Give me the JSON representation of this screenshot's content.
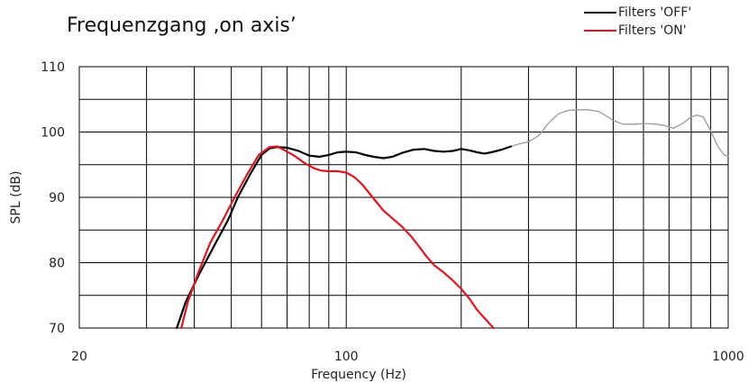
{
  "chart_data": {
    "type": "line",
    "title": "Frequenzgang ‚on axis’",
    "xlabel": "Frequency (Hz)",
    "ylabel": "SPL (dB)",
    "x_scale": "log",
    "xlim": [
      20,
      1000
    ],
    "ylim": [
      70,
      110
    ],
    "x_tick_labels": [
      {
        "value": 20,
        "label": "20"
      },
      {
        "value": 100,
        "label": "100"
      },
      {
        "value": 1000,
        "label": "1000"
      }
    ],
    "y_tick_labels": [
      {
        "value": 70,
        "label": "70"
      },
      {
        "value": 80,
        "label": "80"
      },
      {
        "value": 90,
        "label": "90"
      },
      {
        "value": 100,
        "label": "100"
      },
      {
        "value": 110,
        "label": "110"
      }
    ],
    "grid": true,
    "legend_position": "top-right",
    "series": [
      {
        "name": "Filters 'OFF'",
        "color": "#000000",
        "points": [
          [
            36,
            70
          ],
          [
            38,
            74
          ],
          [
            41,
            78
          ],
          [
            45,
            82.5
          ],
          [
            49,
            86.5
          ],
          [
            52,
            90
          ],
          [
            56,
            93.5
          ],
          [
            60,
            96.5
          ],
          [
            63,
            97.5
          ],
          [
            66,
            97.7
          ],
          [
            70,
            97.6
          ],
          [
            75,
            97.1
          ],
          [
            80,
            96.4
          ],
          [
            85,
            96.2
          ],
          [
            90,
            96.5
          ],
          [
            95,
            96.9
          ],
          [
            100,
            97.0
          ],
          [
            106,
            96.9
          ],
          [
            112,
            96.5
          ],
          [
            118,
            96.2
          ],
          [
            125,
            96.0
          ],
          [
            132,
            96.2
          ],
          [
            140,
            96.8
          ],
          [
            150,
            97.3
          ],
          [
            160,
            97.4
          ],
          [
            170,
            97.1
          ],
          [
            180,
            97.0
          ],
          [
            190,
            97.1
          ],
          [
            200,
            97.4
          ],
          [
            210,
            97.2
          ],
          [
            220,
            96.9
          ],
          [
            230,
            96.7
          ],
          [
            240,
            96.9
          ],
          [
            255,
            97.3
          ],
          [
            270,
            97.8
          ]
        ]
      },
      {
        "name": "Filters 'ON'",
        "color": "#e0141e",
        "points": [
          [
            37,
            70
          ],
          [
            38.5,
            74
          ],
          [
            41,
            78.5
          ],
          [
            44,
            83
          ],
          [
            47.5,
            86.5
          ],
          [
            51,
            90
          ],
          [
            55,
            93.5
          ],
          [
            59,
            96.5
          ],
          [
            63,
            97.7
          ],
          [
            66,
            97.8
          ],
          [
            69,
            97.2
          ],
          [
            73,
            96.4
          ],
          [
            78,
            95.2
          ],
          [
            82,
            94.5
          ],
          [
            86,
            94.1
          ],
          [
            90,
            94.0
          ],
          [
            95,
            94.0
          ],
          [
            100,
            93.8
          ],
          [
            105,
            93.1
          ],
          [
            110,
            92.0
          ],
          [
            118,
            89.8
          ],
          [
            125,
            88.0
          ],
          [
            132,
            86.8
          ],
          [
            140,
            85.5
          ],
          [
            148,
            84.0
          ],
          [
            155,
            82.5
          ],
          [
            162,
            81.0
          ],
          [
            170,
            79.6
          ],
          [
            180,
            78.5
          ],
          [
            190,
            77.3
          ],
          [
            200,
            76.0
          ],
          [
            210,
            74.5
          ],
          [
            220,
            72.8
          ],
          [
            232,
            71.3
          ],
          [
            243,
            70
          ]
        ]
      },
      {
        "name": "",
        "color": "#9a9a9a",
        "points": [
          [
            270,
            97.8
          ],
          [
            285,
            98.2
          ],
          [
            300,
            98.5
          ],
          [
            320,
            99.5
          ],
          [
            340,
            101.5
          ],
          [
            360,
            102.8
          ],
          [
            380,
            103.3
          ],
          [
            400,
            103.4
          ],
          [
            430,
            103.4
          ],
          [
            460,
            103.1
          ],
          [
            500,
            101.8
          ],
          [
            530,
            101.2
          ],
          [
            570,
            101.2
          ],
          [
            610,
            101.3
          ],
          [
            650,
            101.2
          ],
          [
            680,
            101.0
          ],
          [
            720,
            100.6
          ],
          [
            760,
            101.3
          ],
          [
            800,
            102.3
          ],
          [
            830,
            102.6
          ],
          [
            860,
            102.3
          ],
          [
            900,
            100.2
          ],
          [
            940,
            97.8
          ],
          [
            975,
            96.5
          ],
          [
            1000,
            96.3
          ]
        ]
      }
    ]
  }
}
